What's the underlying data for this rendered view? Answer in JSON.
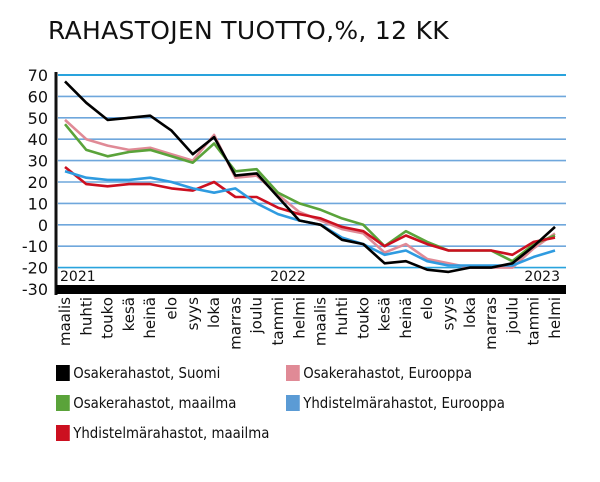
{
  "title": "RAHASTOJEN TUOTTO,%, 12 KK",
  "legend": [
    {
      "label": "Osakerahastot, Suomi",
      "color": "#000000"
    },
    {
      "label": "Osakerahastot, Eurooppa",
      "color": "#e08a96"
    },
    {
      "label": "Osakerahastot, maailma",
      "color": "#5aa33a"
    },
    {
      "label": "Yhdistelmärahastot, Eurooppa",
      "color": "#2f9be0"
    },
    {
      "label": "Yhdistelmärahastot, maailma",
      "color": "#cc1020"
    }
  ],
  "year_labels": [
    "2021",
    "2022",
    "2023"
  ],
  "chart_data": {
    "type": "line",
    "title": "RAHASTOJEN TUOTTO,%, 12 KK",
    "xlabel": "",
    "ylabel": "%",
    "ylim": [
      -30,
      70
    ],
    "yticks": [
      70,
      60,
      50,
      40,
      30,
      20,
      10,
      0,
      -10,
      -20,
      -30
    ],
    "grid": true,
    "legend_position": "bottom",
    "categories": [
      "maalis",
      "huhti",
      "touko",
      "kesä",
      "heinä",
      "elo",
      "syys",
      "loka",
      "marras",
      "joulu",
      "tammi",
      "helmi",
      "maalis",
      "huhti",
      "touko",
      "kesä",
      "heinä",
      "elo",
      "syys",
      "loka",
      "marras",
      "joulu",
      "tammi",
      "helmi"
    ],
    "year_markers": [
      {
        "label": "2021",
        "index": 0
      },
      {
        "label": "2022",
        "index": 11
      },
      {
        "label": "2023",
        "index": 23
      }
    ],
    "series": [
      {
        "name": "Osakerahastot, Suomi",
        "color": "#000000",
        "values": [
          67,
          57,
          49,
          50,
          51,
          44,
          33,
          41,
          23,
          24,
          13,
          2,
          0,
          -7,
          -9,
          -18,
          -17,
          -21,
          -22,
          -20,
          -20,
          -18,
          -10,
          -1
        ]
      },
      {
        "name": "Osakerahastot, Eurooppa",
        "color": "#e08a96",
        "values": [
          49,
          40,
          37,
          35,
          36,
          33,
          30,
          42,
          22,
          23,
          14,
          6,
          2,
          -2,
          -4,
          -13,
          -9,
          -16,
          -18,
          -20,
          -20,
          -20,
          -11,
          -4
        ]
      },
      {
        "name": "Osakerahastot, maailma",
        "color": "#5aa33a",
        "values": [
          47,
          35,
          32,
          34,
          35,
          32,
          29,
          38,
          25,
          26,
          15,
          10,
          7,
          3,
          0,
          -10,
          -3,
          -8,
          -12,
          -12,
          -12,
          -17,
          -9,
          -5
        ]
      },
      {
        "name": "Yhdistelmärahastot, Eurooppa",
        "color": "#2f9be0",
        "values": [
          25,
          22,
          21,
          21,
          22,
          20,
          17,
          15,
          17,
          10,
          5,
          2,
          0,
          -6,
          -9,
          -14,
          -12,
          -17,
          -19,
          -19,
          -19,
          -19,
          -15,
          -12
        ]
      },
      {
        "name": "Yhdistelmärahastot, maailma",
        "color": "#cc1020",
        "values": [
          27,
          19,
          18,
          19,
          19,
          17,
          16,
          20,
          13,
          13,
          8,
          5,
          3,
          -1,
          -3,
          -10,
          -5,
          -9,
          -12,
          -12,
          -12,
          -14,
          -8,
          -6
        ]
      }
    ]
  }
}
